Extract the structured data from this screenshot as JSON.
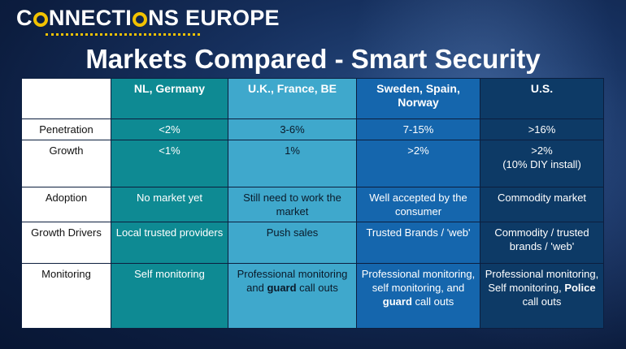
{
  "brand": {
    "pre": "C",
    "post": "NNECTI",
    "o2": "NS EUROPE"
  },
  "title": "Markets Compared - Smart Security",
  "table": {
    "columns": [
      "",
      "NL, Germany",
      "U.K., France, BE",
      "Sweden, Spain, Norway",
      "U.S."
    ],
    "rows": {
      "penetration": {
        "label": "Penetration",
        "cells": [
          "<2%",
          "3-6%",
          "7-15%",
          ">16%"
        ]
      },
      "growth": {
        "label": "Growth",
        "cells": [
          "<1%",
          "1%",
          ">2%",
          ">2%"
        ],
        "us_note": "(10% DIY install)"
      },
      "adoption": {
        "label": "Adoption",
        "cells": [
          "No market yet",
          "Still need to work the market",
          "Well accepted by the consumer",
          "Commodity market"
        ]
      },
      "drivers": {
        "label": "Growth Drivers",
        "cells": [
          "Local trusted providers",
          "Push sales",
          "Trusted Brands / 'web'",
          "Commodity / trusted brands / 'web'"
        ]
      },
      "monitoring": {
        "label": "Monitoring",
        "c1": "Self monitoring",
        "c2_pre": "Professional monitoring and ",
        "c2_bold": "guard",
        "c2_post": " call outs",
        "c3_pre": "Professional monitoring, self monitoring, and ",
        "c3_bold": "guard",
        "c3_post": " call outs",
        "c4_pre": "Professional monitoring, Self monitoring, ",
        "c4_bold": "Police",
        "c4_post": " call outs"
      }
    }
  }
}
